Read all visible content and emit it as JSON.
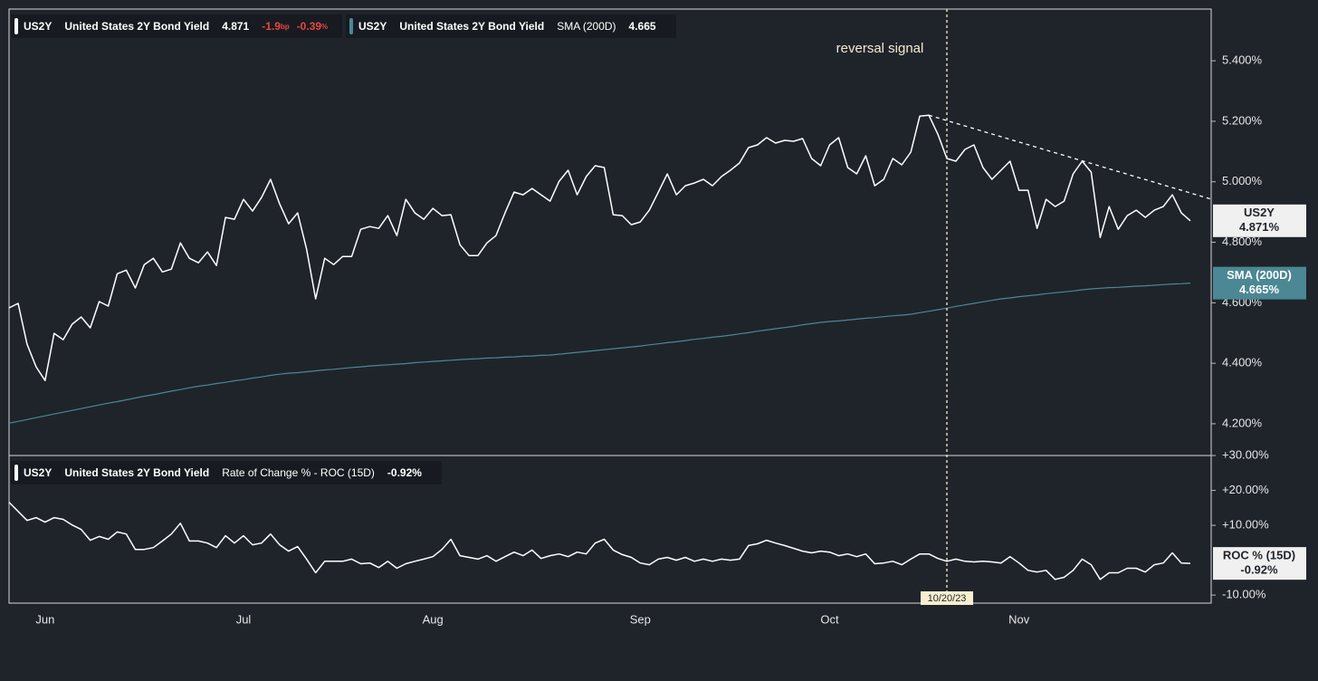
{
  "chart_data": [
    {
      "type": "line",
      "header": {
        "symbol": "US2Y",
        "name": "United States 2Y Bond Yield",
        "last": "4.871",
        "change": "-1.9",
        "change_unit": "bp",
        "change_pct": "-0.39",
        "pct_unit": "%"
      },
      "sma_header": {
        "symbol": "US2Y",
        "name": "United States 2Y Bond Yield",
        "study": "SMA (200D)",
        "last": "4.665"
      },
      "annotation": "reversal signal",
      "categories": [
        null,
        null,
        null,
        null,
        "Jun",
        null,
        null,
        null,
        null,
        null,
        null,
        null,
        null,
        null,
        null,
        null,
        null,
        null,
        null,
        null,
        null,
        null,
        null,
        null,
        null,
        null,
        "Jul",
        null,
        null,
        null,
        null,
        null,
        null,
        null,
        null,
        null,
        null,
        null,
        null,
        null,
        null,
        null,
        null,
        null,
        null,
        null,
        null,
        "Aug",
        null,
        null,
        null,
        null,
        null,
        null,
        null,
        null,
        null,
        null,
        null,
        null,
        null,
        null,
        null,
        null,
        null,
        null,
        null,
        null,
        null,
        null,
        "Sep",
        null,
        null,
        null,
        null,
        null,
        null,
        null,
        null,
        null,
        null,
        null,
        null,
        null,
        null,
        null,
        null,
        null,
        null,
        null,
        null,
        "Oct",
        null,
        null,
        null,
        null,
        null,
        null,
        null,
        null,
        null,
        null,
        null,
        null,
        null,
        null,
        null,
        null,
        null,
        null,
        null,
        null,
        "Nov",
        null,
        null,
        null,
        null,
        null,
        null,
        null,
        null,
        null,
        null,
        null,
        null,
        null,
        null,
        null,
        null,
        null,
        null,
        null
      ],
      "crosshair": {
        "index": 104,
        "label": "10/20/23"
      },
      "trendline": {
        "start": {
          "index": 102,
          "value": 5.22
        },
        "end": {
          "index": 131,
          "value": 4.963
        }
      },
      "series": [
        {
          "name": "US2Y",
          "color": "#ffffff",
          "last_label": "4.871%",
          "values": [
            4.583,
            4.598,
            4.463,
            4.388,
            4.343,
            4.499,
            4.478,
            4.529,
            4.553,
            4.517,
            4.604,
            4.589,
            4.696,
            4.708,
            4.649,
            4.726,
            4.747,
            4.702,
            4.711,
            4.798,
            4.747,
            4.732,
            4.768,
            4.723,
            4.882,
            4.876,
            4.942,
            4.903,
            4.948,
            5.008,
            4.927,
            4.861,
            4.897,
            4.777,
            4.613,
            4.747,
            4.726,
            4.753,
            4.753,
            4.843,
            4.852,
            4.846,
            4.888,
            4.822,
            4.942,
            4.897,
            4.876,
            4.912,
            4.888,
            4.891,
            4.792,
            4.756,
            4.756,
            4.798,
            4.822,
            4.897,
            4.966,
            4.957,
            4.978,
            4.957,
            4.936,
            5.002,
            5.038,
            4.957,
            5.017,
            5.053,
            5.047,
            4.891,
            4.888,
            4.858,
            4.867,
            4.906,
            4.966,
            5.026,
            4.957,
            4.987,
            4.996,
            5.008,
            4.987,
            5.017,
            5.038,
            5.062,
            5.113,
            5.122,
            5.146,
            5.128,
            5.137,
            5.134,
            5.143,
            5.077,
            5.053,
            5.122,
            5.146,
            5.047,
            5.026,
            5.086,
            4.987,
            5.008,
            5.077,
            5.056,
            5.098,
            5.217,
            5.22,
            5.157,
            5.077,
            5.068,
            5.107,
            5.122,
            5.047,
            5.008,
            5.038,
            5.068,
            4.972,
            4.972,
            4.846,
            4.942,
            4.918,
            4.936,
            5.026,
            5.068,
            5.032,
            4.816,
            4.918,
            4.843,
            4.888,
            4.906,
            4.882,
            4.906,
            4.918,
            4.957,
            4.897,
            4.871
          ]
        },
        {
          "name": "SMA (200D)",
          "color": "#4b8794",
          "last_label": "4.665%",
          "values": [
            4.202,
            4.208,
            4.214,
            4.22,
            4.226,
            4.232,
            4.238,
            4.244,
            4.25,
            4.256,
            4.262,
            4.268,
            4.273,
            4.279,
            4.285,
            4.291,
            4.296,
            4.302,
            4.308,
            4.313,
            4.319,
            4.324,
            4.328,
            4.333,
            4.337,
            4.342,
            4.346,
            4.351,
            4.355,
            4.36,
            4.364,
            4.367,
            4.369,
            4.372,
            4.375,
            4.378,
            4.38,
            4.383,
            4.386,
            4.388,
            4.391,
            4.393,
            4.395,
            4.397,
            4.399,
            4.402,
            4.404,
            4.406,
            4.408,
            4.41,
            4.412,
            4.414,
            4.415,
            4.417,
            4.418,
            4.42,
            4.421,
            4.423,
            4.424,
            4.426,
            4.427,
            4.43,
            4.433,
            4.436,
            4.439,
            4.442,
            4.445,
            4.448,
            4.451,
            4.454,
            4.457,
            4.461,
            4.464,
            4.468,
            4.471,
            4.475,
            4.479,
            4.482,
            4.486,
            4.489,
            4.493,
            4.497,
            4.501,
            4.506,
            4.51,
            4.514,
            4.518,
            4.522,
            4.527,
            4.531,
            4.535,
            4.538,
            4.54,
            4.543,
            4.546,
            4.549,
            4.551,
            4.554,
            4.557,
            4.559,
            4.562,
            4.567,
            4.572,
            4.577,
            4.582,
            4.588,
            4.593,
            4.598,
            4.603,
            4.608,
            4.613,
            4.616,
            4.62,
            4.623,
            4.626,
            4.63,
            4.633,
            4.636,
            4.639,
            4.643,
            4.646,
            4.648,
            4.65,
            4.651,
            4.653,
            4.655,
            4.656,
            4.658,
            4.66,
            4.662,
            4.663,
            4.665
          ]
        }
      ],
      "ylim": [
        4.095,
        5.571
      ],
      "yticks": [
        {
          "value": 4.2,
          "label": "4.200%"
        },
        {
          "value": 4.4,
          "label": "4.400%"
        },
        {
          "value": 4.6,
          "label": "4.600%"
        },
        {
          "value": 4.8,
          "label": "4.800%"
        },
        {
          "value": 5.0,
          "label": "5.000%"
        },
        {
          "value": 5.2,
          "label": "5.200%"
        },
        {
          "value": 5.4,
          "label": "5.400%"
        }
      ]
    },
    {
      "type": "line",
      "header": {
        "symbol": "US2Y",
        "name": "United States 2Y Bond Yield",
        "study": "Rate of Change % - ROC (15D)",
        "last": "-0.92%"
      },
      "series": [
        {
          "name": "ROC % (15D)",
          "color": "#ffffff",
          "last_label": "-0.92%",
          "values": [
            16.6,
            14.0,
            11.4,
            12.2,
            10.9,
            12.2,
            11.7,
            10.1,
            8.8,
            5.7,
            6.8,
            6.0,
            8.1,
            7.5,
            3.1,
            3.1,
            3.6,
            5.5,
            7.5,
            10.6,
            5.5,
            5.5,
            4.9,
            3.6,
            7.0,
            4.9,
            7.0,
            4.4,
            4.9,
            7.5,
            4.4,
            2.6,
            3.9,
            0.3,
            -3.6,
            -0.3,
            -0.3,
            -0.3,
            0.3,
            -1.0,
            -0.8,
            -2.1,
            -0.3,
            -2.3,
            -1.0,
            -0.3,
            0.3,
            1.0,
            3.1,
            6.0,
            1.3,
            0.8,
            0.3,
            1.3,
            -0.3,
            1.0,
            2.3,
            1.3,
            2.9,
            0.5,
            1.3,
            1.8,
            1.0,
            2.3,
            1.8,
            4.9,
            6.0,
            2.9,
            1.6,
            0.8,
            -0.8,
            -1.3,
            0.3,
            0.8,
            0.0,
            0.8,
            -0.3,
            0.3,
            -0.3,
            0.3,
            0.0,
            0.3,
            4.2,
            4.7,
            5.7,
            4.9,
            4.2,
            3.4,
            2.6,
            2.1,
            2.6,
            2.3,
            1.3,
            1.8,
            1.0,
            1.8,
            -1.0,
            -0.8,
            -0.3,
            -1.3,
            0.3,
            1.8,
            1.8,
            0.5,
            -0.3,
            0.3,
            -0.3,
            -0.5,
            -0.3,
            -0.5,
            -0.8,
            1.0,
            -0.8,
            -2.9,
            -3.4,
            -2.9,
            -5.5,
            -4.9,
            -2.9,
            0.3,
            -1.3,
            -5.5,
            -3.6,
            -3.6,
            -2.3,
            -2.3,
            -3.4,
            -1.3,
            -0.8,
            2.1,
            -0.8,
            -0.92
          ]
        }
      ],
      "ylim": [
        -12.3,
        30
      ],
      "yticks": [
        {
          "value": -10,
          "label": "-10.00%"
        },
        {
          "value": 10,
          "label": "+10.00%"
        },
        {
          "value": 20,
          "label": "+20.00%"
        },
        {
          "value": 30,
          "label": "+30.00%"
        }
      ]
    }
  ]
}
